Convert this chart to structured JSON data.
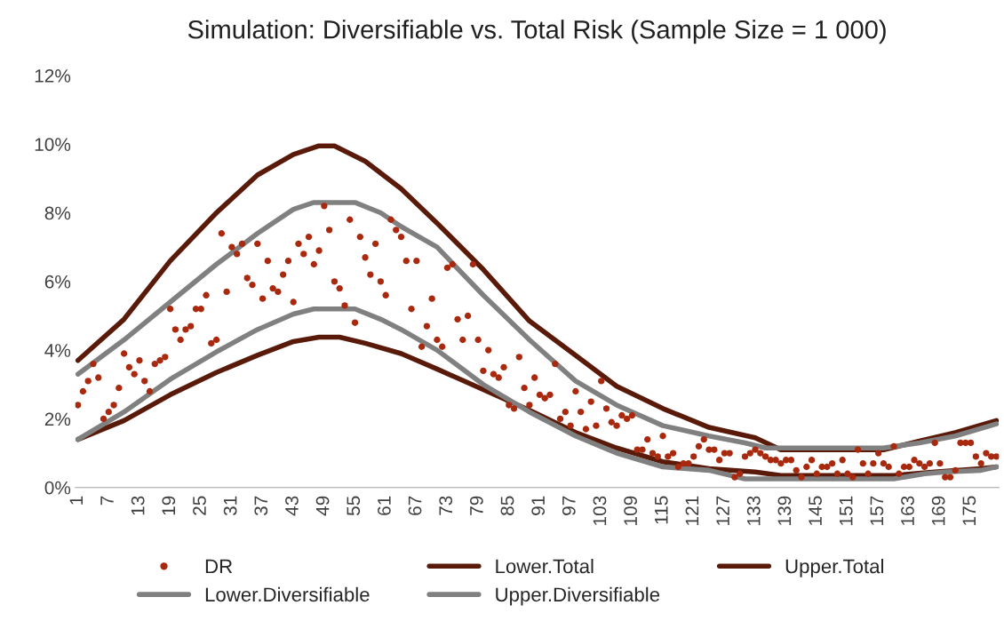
{
  "chart_data": {
    "type": "line",
    "title": "Simulation: Diversifiable vs. Total Risk (Sample Size = 1 000)",
    "xlim": [
      0.5,
      180.5
    ],
    "xticks": [
      1,
      7,
      13,
      19,
      25,
      31,
      37,
      43,
      49,
      55,
      61,
      67,
      73,
      79,
      85,
      91,
      97,
      103,
      109,
      115,
      121,
      127,
      133,
      139,
      145,
      151,
      157,
      163,
      169,
      175
    ],
    "ylim": [
      0,
      12
    ],
    "yticks": [
      {
        "value": 0,
        "label": "0%"
      },
      {
        "value": 2,
        "label": "2%"
      },
      {
        "value": 4,
        "label": "4%"
      },
      {
        "value": 6,
        "label": "6%"
      },
      {
        "value": 8,
        "label": "8%"
      },
      {
        "value": 10,
        "label": "10%"
      },
      {
        "value": 12,
        "label": "12%"
      }
    ],
    "grid": false,
    "legend": "bottom",
    "series": [
      {
        "name": "DR",
        "type": "scatter",
        "marker": "circle",
        "color": "#a8290e",
        "x": [
          1,
          2,
          3,
          4,
          5,
          6,
          7,
          8,
          9,
          10,
          11,
          12,
          13,
          14,
          15,
          16,
          17,
          18,
          19,
          20,
          21,
          22,
          23,
          24,
          25,
          26,
          27,
          28,
          29,
          30,
          31,
          32,
          33,
          34,
          35,
          36,
          37,
          38,
          39,
          40,
          41,
          42,
          43,
          44,
          45,
          46,
          47,
          48,
          49,
          50,
          51,
          52,
          53,
          54,
          55,
          56,
          57,
          58,
          59,
          60,
          61,
          62,
          63,
          64,
          65,
          66,
          67,
          68,
          69,
          70,
          71,
          72,
          73,
          74,
          75,
          76,
          77,
          78,
          79,
          80,
          81,
          82,
          83,
          84,
          85,
          86,
          87,
          88,
          89,
          90,
          91,
          92,
          93,
          94,
          95,
          96,
          97,
          98,
          99,
          100,
          101,
          102,
          103,
          104,
          105,
          106,
          107,
          108,
          109,
          110,
          111,
          112,
          113,
          114,
          115,
          116,
          117,
          118,
          119,
          120,
          121,
          122,
          123,
          124,
          125,
          126,
          127,
          128,
          129,
          130,
          131,
          132,
          133,
          134,
          135,
          136,
          137,
          138,
          139,
          140,
          141,
          142,
          143,
          144,
          145,
          146,
          147,
          148,
          149,
          150,
          151,
          152,
          153,
          154,
          155,
          156,
          157,
          158,
          159,
          160,
          161,
          162,
          163,
          164,
          165,
          166,
          167,
          168,
          169,
          170,
          171,
          172,
          173,
          174,
          175,
          176,
          177,
          178,
          179,
          180
        ],
        "values": [
          2.4,
          2.8,
          3.1,
          3.6,
          3.2,
          2.0,
          2.2,
          2.4,
          2.9,
          3.9,
          3.5,
          3.3,
          3.7,
          3.1,
          2.8,
          3.6,
          3.7,
          3.8,
          5.2,
          4.6,
          4.3,
          4.6,
          4.7,
          5.2,
          5.2,
          5.6,
          4.2,
          4.3,
          7.4,
          5.7,
          7.0,
          6.8,
          7.1,
          6.1,
          5.9,
          7.1,
          5.5,
          6.6,
          5.8,
          5.7,
          6.2,
          6.6,
          5.4,
          7.1,
          6.8,
          7.3,
          6.5,
          6.9,
          8.2,
          7.5,
          6.0,
          5.8,
          5.3,
          7.8,
          4.8,
          7.3,
          6.7,
          6.2,
          7.1,
          6.0,
          5.6,
          7.8,
          7.5,
          7.3,
          6.6,
          5.2,
          6.6,
          4.1,
          4.7,
          5.5,
          4.3,
          4.1,
          6.4,
          6.5,
          4.9,
          4.3,
          5.0,
          6.5,
          4.3,
          3.4,
          4.0,
          3.3,
          3.2,
          3.5,
          2.4,
          2.3,
          3.8,
          2.9,
          2.4,
          3.2,
          2.7,
          2.6,
          2.7,
          3.6,
          2.0,
          2.2,
          1.8,
          2.8,
          2.2,
          1.7,
          2.5,
          1.8,
          3.1,
          2.3,
          1.9,
          1.8,
          2.1,
          2.0,
          2.1,
          1.1,
          1.1,
          1.4,
          1.0,
          0.9,
          1.5,
          0.9,
          1.0,
          0.6,
          0.7,
          0.7,
          0.9,
          1.2,
          1.4,
          1.1,
          1.1,
          0.8,
          1.0,
          1.0,
          0.3,
          0.4,
          0.9,
          1.0,
          1.1,
          1.0,
          0.9,
          0.8,
          0.8,
          0.7,
          0.8,
          0.8,
          0.5,
          0.3,
          0.6,
          0.8,
          0.4,
          0.6,
          0.6,
          0.7,
          0.4,
          0.8,
          0.4,
          0.3,
          1.1,
          0.7,
          0.4,
          0.7,
          1.0,
          0.7,
          0.6,
          1.2,
          0.4,
          0.6,
          0.6,
          0.8,
          0.7,
          0.6,
          0.7,
          1.3,
          0.7,
          0.3,
          0.3,
          0.5,
          1.3,
          1.3,
          1.3,
          0.9,
          0.7,
          1.0,
          0.9,
          0.9
        ]
      },
      {
        "name": "Lower.Total",
        "line_style": "solid",
        "marker": "none",
        "color": "#5a1a0a",
        "x": [
          1,
          10,
          19,
          28,
          36,
          43,
          48,
          52,
          57,
          64,
          71,
          80,
          89,
          98,
          106,
          115,
          124,
          133,
          138,
          160,
          168,
          177,
          180
        ],
        "values": [
          1.4,
          1.95,
          2.7,
          3.35,
          3.85,
          4.25,
          4.38,
          4.38,
          4.2,
          3.9,
          3.45,
          2.85,
          2.25,
          1.6,
          1.15,
          0.75,
          0.55,
          0.45,
          0.35,
          0.35,
          0.45,
          0.55,
          0.6
        ]
      },
      {
        "name": "Upper.Total",
        "line_style": "solid",
        "marker": "none",
        "color": "#5a1a0a",
        "x": [
          1,
          10,
          19,
          28,
          36,
          43,
          48,
          51,
          57,
          64,
          71,
          80,
          89,
          98,
          106,
          115,
          124,
          133,
          138,
          158,
          165,
          172,
          180
        ],
        "values": [
          3.7,
          4.9,
          6.6,
          8.0,
          9.1,
          9.7,
          9.95,
          9.95,
          9.5,
          8.7,
          7.7,
          6.35,
          4.85,
          3.85,
          2.95,
          2.3,
          1.75,
          1.45,
          1.1,
          1.1,
          1.35,
          1.6,
          1.95
        ]
      },
      {
        "name": "Lower.Diversifiable",
        "line_style": "solid",
        "marker": "none",
        "color": "#808080",
        "x": [
          1,
          10,
          19,
          28,
          36,
          43,
          47,
          55,
          60,
          64,
          71,
          80,
          89,
          98,
          106,
          115,
          124,
          131,
          160,
          166,
          170,
          177,
          180
        ],
        "values": [
          1.4,
          2.2,
          3.15,
          3.95,
          4.6,
          5.05,
          5.2,
          5.2,
          4.9,
          4.6,
          4.0,
          3.0,
          2.2,
          1.5,
          1.0,
          0.6,
          0.5,
          0.25,
          0.25,
          0.4,
          0.45,
          0.5,
          0.6
        ]
      },
      {
        "name": "Upper.Diversifiable",
        "line_style": "solid",
        "marker": "none",
        "color": "#808080",
        "x": [
          1,
          10,
          19,
          28,
          36,
          43,
          47,
          55,
          60,
          64,
          71,
          80,
          89,
          98,
          106,
          115,
          124,
          131,
          135,
          158,
          165,
          172,
          180
        ],
        "values": [
          3.3,
          4.3,
          5.4,
          6.5,
          7.4,
          8.1,
          8.3,
          8.3,
          8.0,
          7.6,
          7.0,
          5.6,
          4.3,
          3.1,
          2.4,
          1.8,
          1.5,
          1.3,
          1.15,
          1.15,
          1.3,
          1.5,
          1.85
        ]
      }
    ]
  }
}
